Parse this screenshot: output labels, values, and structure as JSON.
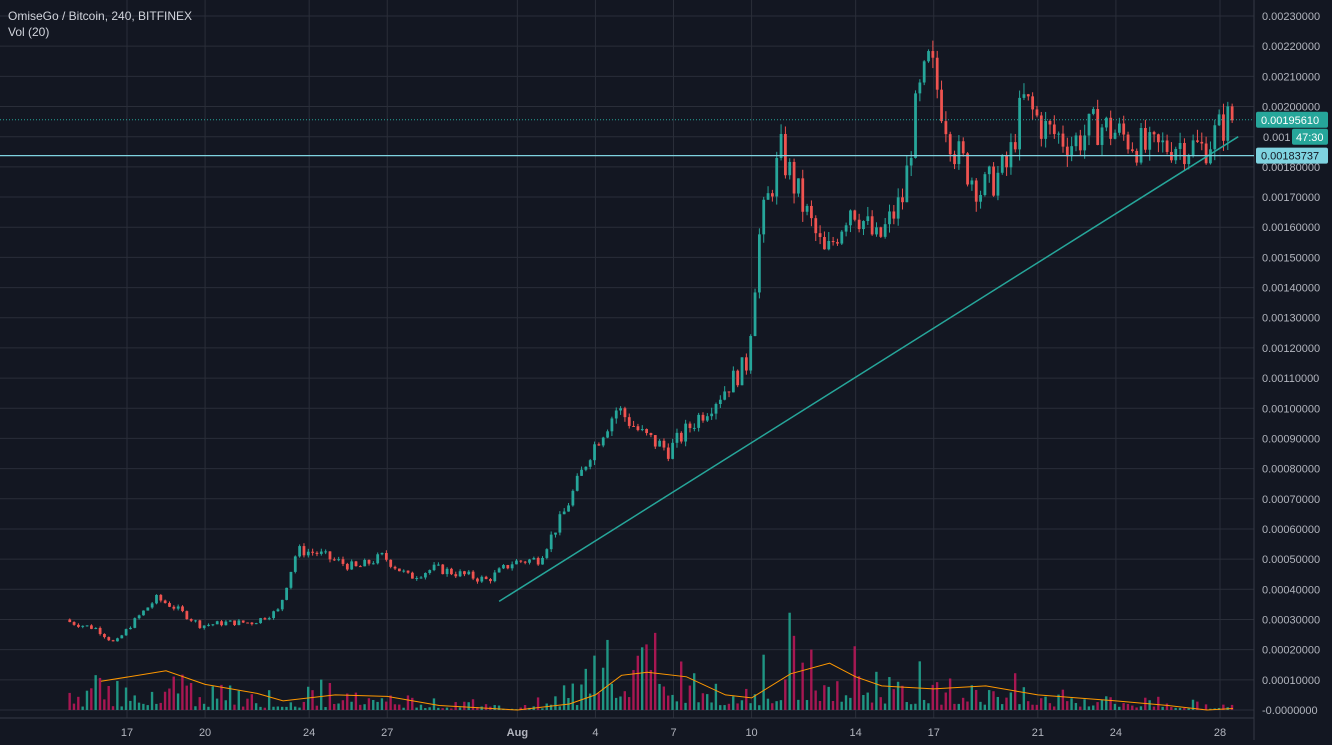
{
  "header": {
    "symbol_line": "OmiseGo / Bitcoin, 240, BITFINEX",
    "volume_indicator": "Vol (20)"
  },
  "price_labels": {
    "last_price": "0.00195610",
    "countdown_prefix": "0.001",
    "countdown": "47:30",
    "horizontal_line": "0.00183737"
  },
  "colors": {
    "background": "#131722",
    "grid": "#2a2e39",
    "up": "#26a69a",
    "down": "#ef5350",
    "up_bright": "#22ab94",
    "down_volume": "#c2185b",
    "ma_line": "#ff9800",
    "trendline": "#26a69a",
    "horizontal_line": "#7fd3e0",
    "axis_text": "#b2b5be"
  },
  "chart_data": {
    "type": "candlestick",
    "title": "OmiseGo / Bitcoin, 240, BITFINEX",
    "ylim": [
      0,
      0.0023
    ],
    "y_ticks": [
      "0.00230000",
      "0.00220000",
      "0.00210000",
      "0.00200000",
      "0.00190000",
      "0.00180000",
      "0.00170000",
      "0.00160000",
      "0.00150000",
      "0.00140000",
      "0.00130000",
      "0.00120000",
      "0.00110000",
      "0.00100000",
      "0.00090000",
      "0.00080000",
      "0.00070000",
      "0.00060000",
      "0.00050000",
      "0.00040000",
      "0.00030000",
      "0.00020000",
      "0.00010000",
      "-0.0000000"
    ],
    "x_ticks": [
      "17",
      "20",
      "24",
      "27",
      "Aug",
      "4",
      "7",
      "10",
      "14",
      "17",
      "21",
      "24",
      "28"
    ],
    "x_tick_days": [
      17,
      20,
      24,
      27,
      32,
      35,
      38,
      41,
      45,
      48,
      52,
      55,
      59
    ],
    "start_day": 14.8,
    "bars_per_day": 6,
    "price_path": [
      [
        14.8,
        0.0003
      ],
      [
        15.0,
        0.00029
      ],
      [
        16.0,
        0.00027
      ],
      [
        16.7,
        0.00022
      ],
      [
        17.5,
        0.0003
      ],
      [
        18.3,
        0.00037
      ],
      [
        19.0,
        0.00034
      ],
      [
        20.0,
        0.00028
      ],
      [
        21.0,
        0.00029
      ],
      [
        22.0,
        0.00029
      ],
      [
        23.0,
        0.00033
      ],
      [
        23.7,
        0.00053
      ],
      [
        24.5,
        0.00052
      ],
      [
        25.0,
        0.0005
      ],
      [
        26.0,
        0.00047
      ],
      [
        27.0,
        0.00051
      ],
      [
        28.0,
        0.00044
      ],
      [
        29.0,
        0.00047
      ],
      [
        30.0,
        0.00045
      ],
      [
        31.0,
        0.00043
      ],
      [
        32.0,
        0.00049
      ],
      [
        33.0,
        0.0005
      ],
      [
        34.0,
        0.00066
      ],
      [
        35.0,
        0.00086
      ],
      [
        36.0,
        0.001
      ],
      [
        37.0,
        0.00091
      ],
      [
        38.0,
        0.00086
      ],
      [
        39.0,
        0.00096
      ],
      [
        40.0,
        0.00105
      ],
      [
        41.0,
        0.00115
      ],
      [
        41.5,
        0.0016
      ],
      [
        42.3,
        0.00185
      ],
      [
        43.0,
        0.0017
      ],
      [
        44.0,
        0.0015
      ],
      [
        45.0,
        0.00168
      ],
      [
        46.0,
        0.00155
      ],
      [
        47.0,
        0.0017
      ],
      [
        47.5,
        0.002
      ],
      [
        48.0,
        0.00215
      ],
      [
        49.0,
        0.00185
      ],
      [
        50.0,
        0.00172
      ],
      [
        51.0,
        0.0018
      ],
      [
        51.6,
        0.00202
      ],
      [
        52.5,
        0.00192
      ],
      [
        53.5,
        0.00188
      ],
      [
        54.5,
        0.00194
      ],
      [
        55.5,
        0.0019
      ],
      [
        56.5,
        0.00185
      ],
      [
        57.5,
        0.00188
      ],
      [
        58.5,
        0.00186
      ],
      [
        59.5,
        0.00196
      ]
    ],
    "volume_path": [
      [
        14.8,
        3.5e-05
      ],
      [
        17.0,
        4e-05
      ],
      [
        18.5,
        6e-05
      ],
      [
        20.0,
        3.5e-05
      ],
      [
        23.0,
        2e-05
      ],
      [
        24.0,
        3e-05
      ],
      [
        27.0,
        2.8e-05
      ],
      [
        30.0,
        1.2e-05
      ],
      [
        32.0,
        8e-06
      ],
      [
        34.0,
        3e-05
      ],
      [
        35.5,
        0.00012
      ],
      [
        37.0,
        0.0001
      ],
      [
        39.0,
        6e-05
      ],
      [
        41.0,
        4e-05
      ],
      [
        42.5,
        9e-05
      ],
      [
        44.0,
        0.0001
      ],
      [
        46.0,
        6e-05
      ],
      [
        48.0,
        6e-05
      ],
      [
        51.0,
        4e-05
      ],
      [
        54.0,
        2.5e-05
      ],
      [
        57.0,
        1.5e-05
      ],
      [
        59.5,
        1e-05
      ]
    ],
    "volume_ma_path": [
      [
        16.0,
        9.5e-05
      ],
      [
        18.5,
        0.00013
      ],
      [
        20.0,
        8.5e-05
      ],
      [
        22.0,
        5.5e-05
      ],
      [
        23.0,
        3e-05
      ],
      [
        25.0,
        5e-05
      ],
      [
        27.0,
        4.5e-05
      ],
      [
        29.0,
        1.5e-05
      ],
      [
        32.0,
        0.0
      ],
      [
        34.0,
        2e-05
      ],
      [
        35.0,
        5e-05
      ],
      [
        36.0,
        0.000115
      ],
      [
        37.0,
        0.000125
      ],
      [
        38.5,
        0.00011
      ],
      [
        40.0,
        5e-05
      ],
      [
        41.0,
        4e-05
      ],
      [
        42.5,
        0.00012
      ],
      [
        44.0,
        0.000155
      ],
      [
        45.0,
        0.00011
      ],
      [
        46.0,
        8e-05
      ],
      [
        48.0,
        7e-05
      ],
      [
        50.0,
        8e-05
      ],
      [
        52.0,
        5e-05
      ],
      [
        55.0,
        3e-05
      ],
      [
        57.0,
        1.5e-05
      ],
      [
        58.5,
        0.0
      ],
      [
        59.5,
        5e-06
      ]
    ],
    "trendline": {
      "x": [
        31.3,
        59.7
      ],
      "y": [
        0.00036,
        0.0019
      ]
    },
    "horizontal_line": 0.00183737,
    "last_price": 0.0019561,
    "grid": true
  }
}
